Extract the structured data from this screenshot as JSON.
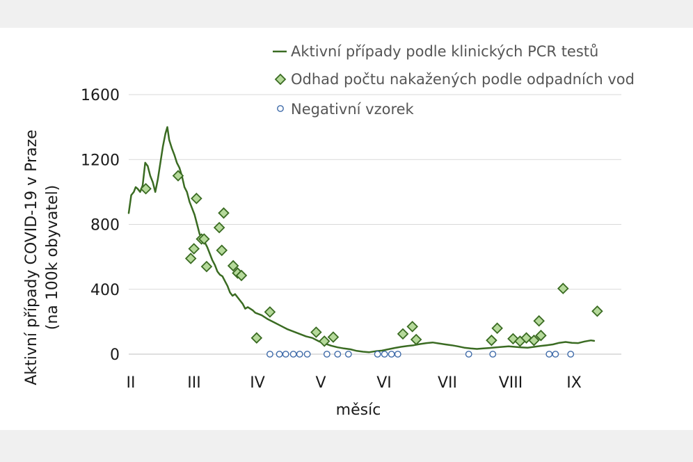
{
  "chart_data": {
    "type": "line+scatter",
    "title": "",
    "xlabel": "měsíc",
    "ylabel": "Aktivní případy COVID-19 v Praze",
    "ylabel_line2": "(na 100k obyvatel)",
    "xlim": [
      2,
      9.78
    ],
    "ylim": [
      0,
      1600
    ],
    "yticks": [
      0,
      400,
      800,
      1200,
      1600
    ],
    "xticks": [
      {
        "v": 2,
        "label": "II"
      },
      {
        "v": 3,
        "label": "III"
      },
      {
        "v": 4,
        "label": "IV"
      },
      {
        "v": 5,
        "label": "V"
      },
      {
        "v": 6,
        "label": "VI"
      },
      {
        "v": 7,
        "label": "VII"
      },
      {
        "v": 8,
        "label": "VIII"
      },
      {
        "v": 9,
        "label": "IX"
      }
    ],
    "grid": "horizontal",
    "legend_position": "top-right",
    "colors": {
      "line": "#3a6b22",
      "diamond_fill": "#b5d99a",
      "diamond_stroke": "#3a6b22",
      "circle_stroke": "#3e6aa8"
    },
    "series": [
      {
        "name": "Aktivní případy podle klinických PCR testů",
        "kind": "line",
        "points": [
          [
            2.0,
            870
          ],
          [
            2.04,
            980
          ],
          [
            2.08,
            1000
          ],
          [
            2.11,
            1030
          ],
          [
            2.14,
            1020
          ],
          [
            2.18,
            1000
          ],
          [
            2.22,
            1040
          ],
          [
            2.26,
            1180
          ],
          [
            2.3,
            1160
          ],
          [
            2.34,
            1100
          ],
          [
            2.38,
            1060
          ],
          [
            2.42,
            1000
          ],
          [
            2.46,
            1080
          ],
          [
            2.5,
            1180
          ],
          [
            2.54,
            1280
          ],
          [
            2.58,
            1360
          ],
          [
            2.61,
            1400
          ],
          [
            2.64,
            1320
          ],
          [
            2.68,
            1270
          ],
          [
            2.72,
            1230
          ],
          [
            2.76,
            1180
          ],
          [
            2.8,
            1150
          ],
          [
            2.84,
            1100
          ],
          [
            2.88,
            1030
          ],
          [
            2.92,
            1000
          ],
          [
            2.96,
            940
          ],
          [
            3.0,
            900
          ],
          [
            3.04,
            860
          ],
          [
            3.08,
            800
          ],
          [
            3.12,
            740
          ],
          [
            3.16,
            710
          ],
          [
            3.2,
            690
          ],
          [
            3.24,
            660
          ],
          [
            3.28,
            620
          ],
          [
            3.32,
            580
          ],
          [
            3.36,
            550
          ],
          [
            3.4,
            510
          ],
          [
            3.44,
            490
          ],
          [
            3.48,
            480
          ],
          [
            3.52,
            450
          ],
          [
            3.56,
            420
          ],
          [
            3.6,
            380
          ],
          [
            3.64,
            360
          ],
          [
            3.68,
            370
          ],
          [
            3.72,
            350
          ],
          [
            3.76,
            330
          ],
          [
            3.8,
            310
          ],
          [
            3.84,
            280
          ],
          [
            3.88,
            290
          ],
          [
            3.92,
            280
          ],
          [
            3.96,
            270
          ],
          [
            4.0,
            255
          ],
          [
            4.1,
            240
          ],
          [
            4.2,
            215
          ],
          [
            4.3,
            195
          ],
          [
            4.4,
            175
          ],
          [
            4.5,
            155
          ],
          [
            4.6,
            140
          ],
          [
            4.7,
            125
          ],
          [
            4.8,
            110
          ],
          [
            4.9,
            100
          ],
          [
            5.0,
            80
          ],
          [
            5.1,
            65
          ],
          [
            5.2,
            52
          ],
          [
            5.3,
            42
          ],
          [
            5.4,
            35
          ],
          [
            5.5,
            30
          ],
          [
            5.6,
            20
          ],
          [
            5.7,
            15
          ],
          [
            5.8,
            12
          ],
          [
            5.9,
            18
          ],
          [
            6.0,
            22
          ],
          [
            6.1,
            30
          ],
          [
            6.2,
            38
          ],
          [
            6.3,
            45
          ],
          [
            6.4,
            50
          ],
          [
            6.5,
            55
          ],
          [
            6.6,
            62
          ],
          [
            6.7,
            68
          ],
          [
            6.8,
            72
          ],
          [
            6.9,
            66
          ],
          [
            7.0,
            60
          ],
          [
            7.1,
            55
          ],
          [
            7.2,
            48
          ],
          [
            7.3,
            40
          ],
          [
            7.4,
            35
          ],
          [
            7.5,
            32
          ],
          [
            7.6,
            35
          ],
          [
            7.7,
            38
          ],
          [
            7.8,
            42
          ],
          [
            7.9,
            45
          ],
          [
            8.0,
            48
          ],
          [
            8.1,
            45
          ],
          [
            8.2,
            42
          ],
          [
            8.3,
            40
          ],
          [
            8.4,
            45
          ],
          [
            8.5,
            50
          ],
          [
            8.6,
            55
          ],
          [
            8.7,
            60
          ],
          [
            8.8,
            70
          ],
          [
            8.9,
            75
          ],
          [
            9.0,
            70
          ],
          [
            9.1,
            68
          ],
          [
            9.2,
            78
          ],
          [
            9.3,
            85
          ],
          [
            9.35,
            82
          ]
        ]
      },
      {
        "name": "Odhad počtu nakažených podle odpadních vod",
        "kind": "diamond",
        "points": [
          [
            2.27,
            1020
          ],
          [
            2.78,
            1100
          ],
          [
            2.98,
            590
          ],
          [
            3.03,
            650
          ],
          [
            3.07,
            960
          ],
          [
            3.15,
            710
          ],
          [
            3.19,
            710
          ],
          [
            3.23,
            540
          ],
          [
            3.43,
            780
          ],
          [
            3.47,
            640
          ],
          [
            3.5,
            870
          ],
          [
            3.65,
            545
          ],
          [
            3.72,
            500
          ],
          [
            3.78,
            485
          ],
          [
            4.02,
            100
          ],
          [
            4.23,
            260
          ],
          [
            4.96,
            135
          ],
          [
            5.09,
            80
          ],
          [
            5.23,
            105
          ],
          [
            6.33,
            125
          ],
          [
            6.48,
            170
          ],
          [
            6.54,
            90
          ],
          [
            7.73,
            85
          ],
          [
            7.82,
            160
          ],
          [
            8.07,
            95
          ],
          [
            8.18,
            80
          ],
          [
            8.28,
            100
          ],
          [
            8.4,
            85
          ],
          [
            8.48,
            205
          ],
          [
            8.51,
            115
          ],
          [
            8.86,
            405
          ],
          [
            9.4,
            265
          ]
        ]
      },
      {
        "name": "Negativní vzorek",
        "kind": "circle",
        "points": [
          [
            4.23,
            0
          ],
          [
            4.38,
            0
          ],
          [
            4.48,
            0
          ],
          [
            4.6,
            0
          ],
          [
            4.7,
            0
          ],
          [
            4.82,
            0
          ],
          [
            5.13,
            0
          ],
          [
            5.3,
            0
          ],
          [
            5.47,
            0
          ],
          [
            5.93,
            0
          ],
          [
            6.04,
            0
          ],
          [
            6.15,
            0
          ],
          [
            6.25,
            0
          ],
          [
            7.37,
            0
          ],
          [
            7.75,
            0
          ],
          [
            8.64,
            0
          ],
          [
            8.74,
            0
          ],
          [
            8.98,
            0
          ]
        ]
      }
    ]
  }
}
